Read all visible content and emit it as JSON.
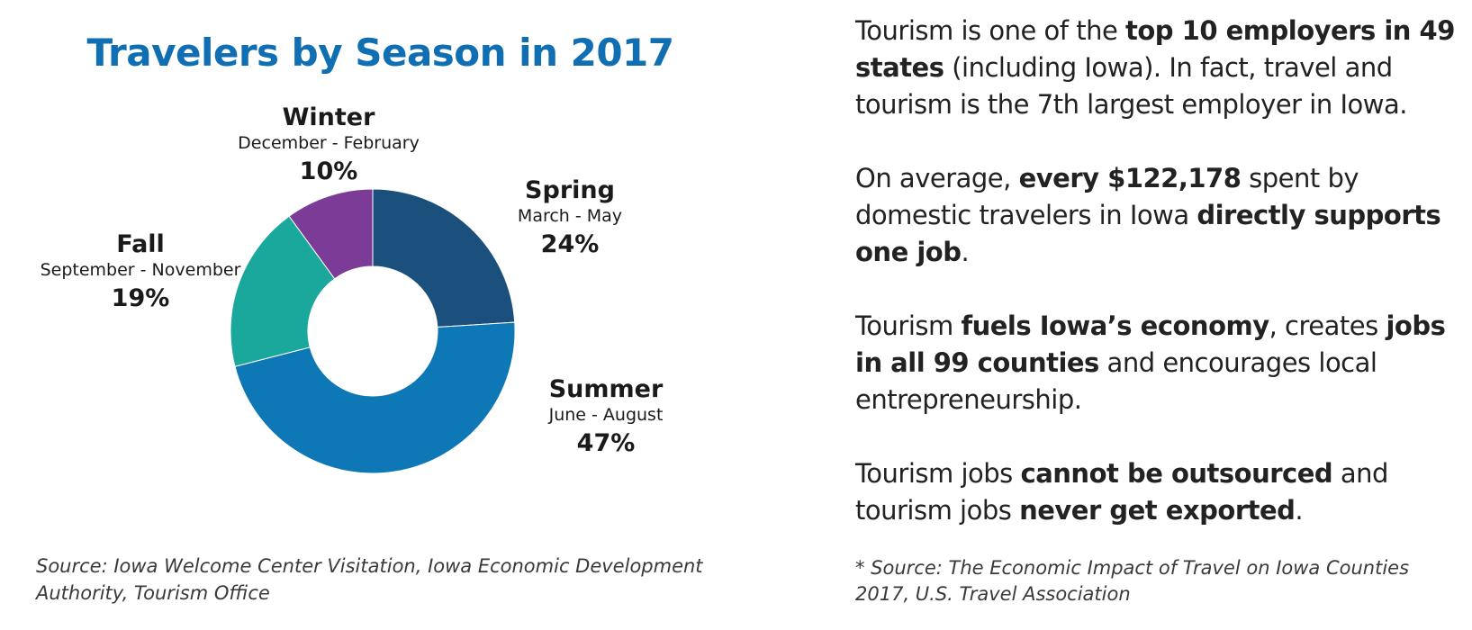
{
  "chart_data": {
    "type": "pie",
    "title": "Travelers by Season in 2017",
    "donut": true,
    "slices": [
      {
        "name": "Spring",
        "range": "March - May",
        "value": 24,
        "label": "24%",
        "color": "#1b4f7c"
      },
      {
        "name": "Summer",
        "range": "June - August",
        "value": 47,
        "label": "47%",
        "color": "#0e77b5"
      },
      {
        "name": "Fall",
        "range": "September - November",
        "value": 19,
        "label": "19%",
        "color": "#1aa89c"
      },
      {
        "name": "Winter",
        "range": "December - February",
        "value": 10,
        "label": "10%",
        "color": "#7b3b97"
      }
    ]
  },
  "source_left": "Source:  Iowa Welcome Center Visitation, Iowa Economic Development Authority, Tourism Office",
  "facts": [
    {
      "segments": [
        {
          "text": "Tourism is one of the ",
          "bold": false
        },
        {
          "text": "top 10 employers in 49 states",
          "bold": true
        },
        {
          "text": " (including Iowa).  In fact, travel and tourism is the 7th largest employer in Iowa.",
          "bold": false
        }
      ]
    },
    {
      "segments": [
        {
          "text": "On average, ",
          "bold": false
        },
        {
          "text": "every $122,178",
          "bold": true
        },
        {
          "text": " spent by domestic travelers in Iowa ",
          "bold": false
        },
        {
          "text": "directly supports one job",
          "bold": true
        },
        {
          "text": ".",
          "bold": false
        }
      ]
    },
    {
      "segments": [
        {
          "text": "Tourism ",
          "bold": false
        },
        {
          "text": "fuels Iowa’s economy",
          "bold": true
        },
        {
          "text": ", creates ",
          "bold": false
        },
        {
          "text": "jobs in all 99 counties",
          "bold": true
        },
        {
          "text": " and encourages local entrepreneurship.",
          "bold": false
        }
      ]
    },
    {
      "segments": [
        {
          "text": "Tourism jobs ",
          "bold": false
        },
        {
          "text": "cannot be outsourced",
          "bold": true
        },
        {
          "text": " and tourism jobs ",
          "bold": false
        },
        {
          "text": "never get exported",
          "bold": true
        },
        {
          "text": ".",
          "bold": false
        }
      ]
    }
  ],
  "source_right": "* Source: The Economic Impact of Travel on Iowa Counties 2017, U.S. Travel Association"
}
